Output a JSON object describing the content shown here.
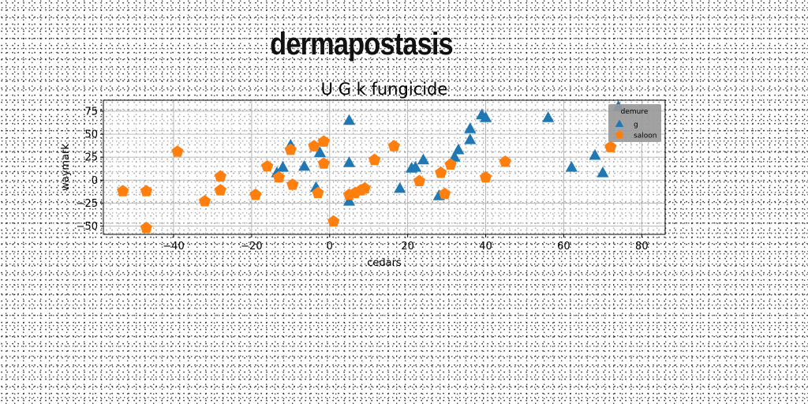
{
  "page": {
    "heading": "dermapostasis"
  },
  "chart_data": {
    "type": "scatter",
    "title": "U G k fungicide",
    "xlabel": "cedars",
    "ylabel": "waymark",
    "xlim": [
      -58,
      86
    ],
    "ylim": [
      -59,
      87
    ],
    "xticks": [
      -40,
      -20,
      0,
      20,
      40,
      60,
      80
    ],
    "yticks": [
      -50,
      -25,
      0,
      25,
      50,
      75
    ],
    "grid": true,
    "legend": {
      "title": "demure",
      "placement": "top-right"
    },
    "series": [
      {
        "name": "g",
        "marker": "triangle",
        "color": "#1f77b4",
        "points": [
          [
            5,
            65
          ],
          [
            -10,
            38
          ],
          [
            -12,
            14
          ],
          [
            -13.5,
            8
          ],
          [
            -6.5,
            15
          ],
          [
            -2.5,
            30
          ],
          [
            -3.5,
            -8
          ],
          [
            5,
            19
          ],
          [
            5,
            -23
          ],
          [
            18,
            -9
          ],
          [
            21,
            13
          ],
          [
            22,
            14
          ],
          [
            24,
            22
          ],
          [
            28,
            -17
          ],
          [
            32,
            25
          ],
          [
            33,
            33
          ],
          [
            36,
            56
          ],
          [
            36,
            44
          ],
          [
            39,
            71
          ],
          [
            40,
            68
          ],
          [
            56,
            68
          ],
          [
            62,
            14
          ],
          [
            68,
            27
          ],
          [
            70,
            8
          ],
          [
            74,
            80
          ]
        ]
      },
      {
        "name": "saloon",
        "marker": "pentagon",
        "color": "#ff7f0e",
        "points": [
          [
            -53,
            -12
          ],
          [
            -47,
            -12
          ],
          [
            -47,
            -52
          ],
          [
            -39,
            31
          ],
          [
            -32,
            -23
          ],
          [
            -28,
            4
          ],
          [
            -28,
            -11
          ],
          [
            -19,
            -16
          ],
          [
            -16,
            15
          ],
          [
            -13,
            3
          ],
          [
            -10,
            33
          ],
          [
            -9.5,
            -5
          ],
          [
            -4,
            37
          ],
          [
            -3,
            -14
          ],
          [
            -1.5,
            42
          ],
          [
            -1.5,
            18
          ],
          [
            1,
            -45
          ],
          [
            5,
            -16
          ],
          [
            6.5,
            -14
          ],
          [
            8,
            -11
          ],
          [
            9,
            -9
          ],
          [
            11.5,
            22
          ],
          [
            16.5,
            37
          ],
          [
            23,
            -1
          ],
          [
            28.5,
            8
          ],
          [
            29.5,
            -15
          ],
          [
            31,
            17
          ],
          [
            40,
            3
          ],
          [
            45,
            20
          ],
          [
            72,
            36
          ]
        ]
      }
    ]
  }
}
